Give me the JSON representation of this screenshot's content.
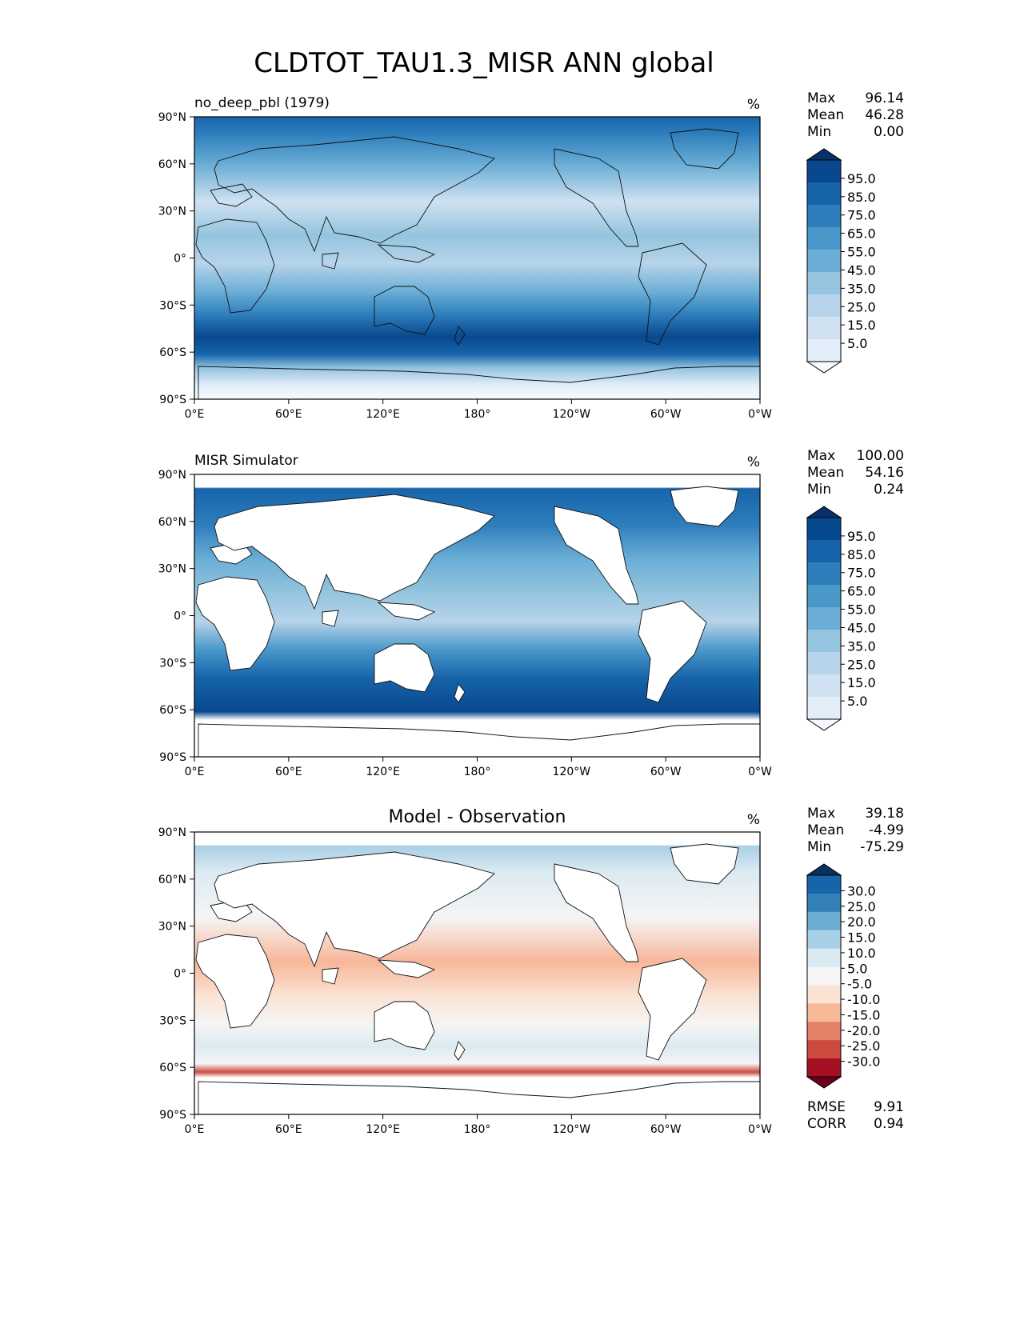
{
  "title": "CLDTOT_TAU1.3_MISR ANN global",
  "lon_ticks": [
    "0°E",
    "60°E",
    "120°E",
    "180°",
    "120°W",
    "60°W",
    "0°W"
  ],
  "lat_ticks": [
    "90°N",
    "60°N",
    "30°N",
    "0°",
    "30°S",
    "60°S",
    "90°S"
  ],
  "blues": [
    "#f7fbff",
    "#e3eef9",
    "#d0e1f2",
    "#b7d4ea",
    "#94c4df",
    "#6aaed6",
    "#4a98c9",
    "#2e7ebc",
    "#1764ab",
    "#08488e",
    "#08306b"
  ],
  "rdbu": [
    "#67001f",
    "#a50f22",
    "#cc4b41",
    "#e48066",
    "#f7b799",
    "#fbe3d4",
    "#f5f5f5",
    "#dbeaf2",
    "#a9cfe5",
    "#6aaed1",
    "#3480b9",
    "#1764ab",
    "#053061"
  ],
  "panels": [
    {
      "left_title": "no_deep_pbl (1979)",
      "center_title": "",
      "units": "%",
      "stats": [
        {
          "label": "Max",
          "value": "96.14"
        },
        {
          "label": "Mean",
          "value": "46.28"
        },
        {
          "label": "Min",
          "value": "0.00"
        }
      ],
      "cbar_labels": [
        "95.0",
        "85.0",
        "75.0",
        "65.0",
        "55.0",
        "45.0",
        "35.0",
        "25.0",
        "15.0",
        "5.0"
      ],
      "extra": []
    },
    {
      "left_title": "MISR Simulator",
      "center_title": "",
      "units": "%",
      "stats": [
        {
          "label": "Max",
          "value": "100.00"
        },
        {
          "label": "Mean",
          "value": "54.16"
        },
        {
          "label": "Min",
          "value": "0.24"
        }
      ],
      "cbar_labels": [
        "95.0",
        "85.0",
        "75.0",
        "65.0",
        "55.0",
        "45.0",
        "35.0",
        "25.0",
        "15.0",
        "5.0"
      ],
      "extra": []
    },
    {
      "left_title": "",
      "center_title": "Model - Observation",
      "units": "%",
      "stats": [
        {
          "label": "Max",
          "value": "39.18"
        },
        {
          "label": "Mean",
          "value": "-4.99"
        },
        {
          "label": "Min",
          "value": "-75.29"
        }
      ],
      "cbar_labels": [
        "30.0",
        "25.0",
        "20.0",
        "15.0",
        "10.0",
        "5.0",
        "-5.0",
        "-10.0",
        "-15.0",
        "-20.0",
        "-25.0",
        "-30.0"
      ],
      "extra": [
        {
          "label": "RMSE",
          "value": "9.91"
        },
        {
          "label": "CORR",
          "value": "0.94"
        }
      ]
    }
  ]
}
